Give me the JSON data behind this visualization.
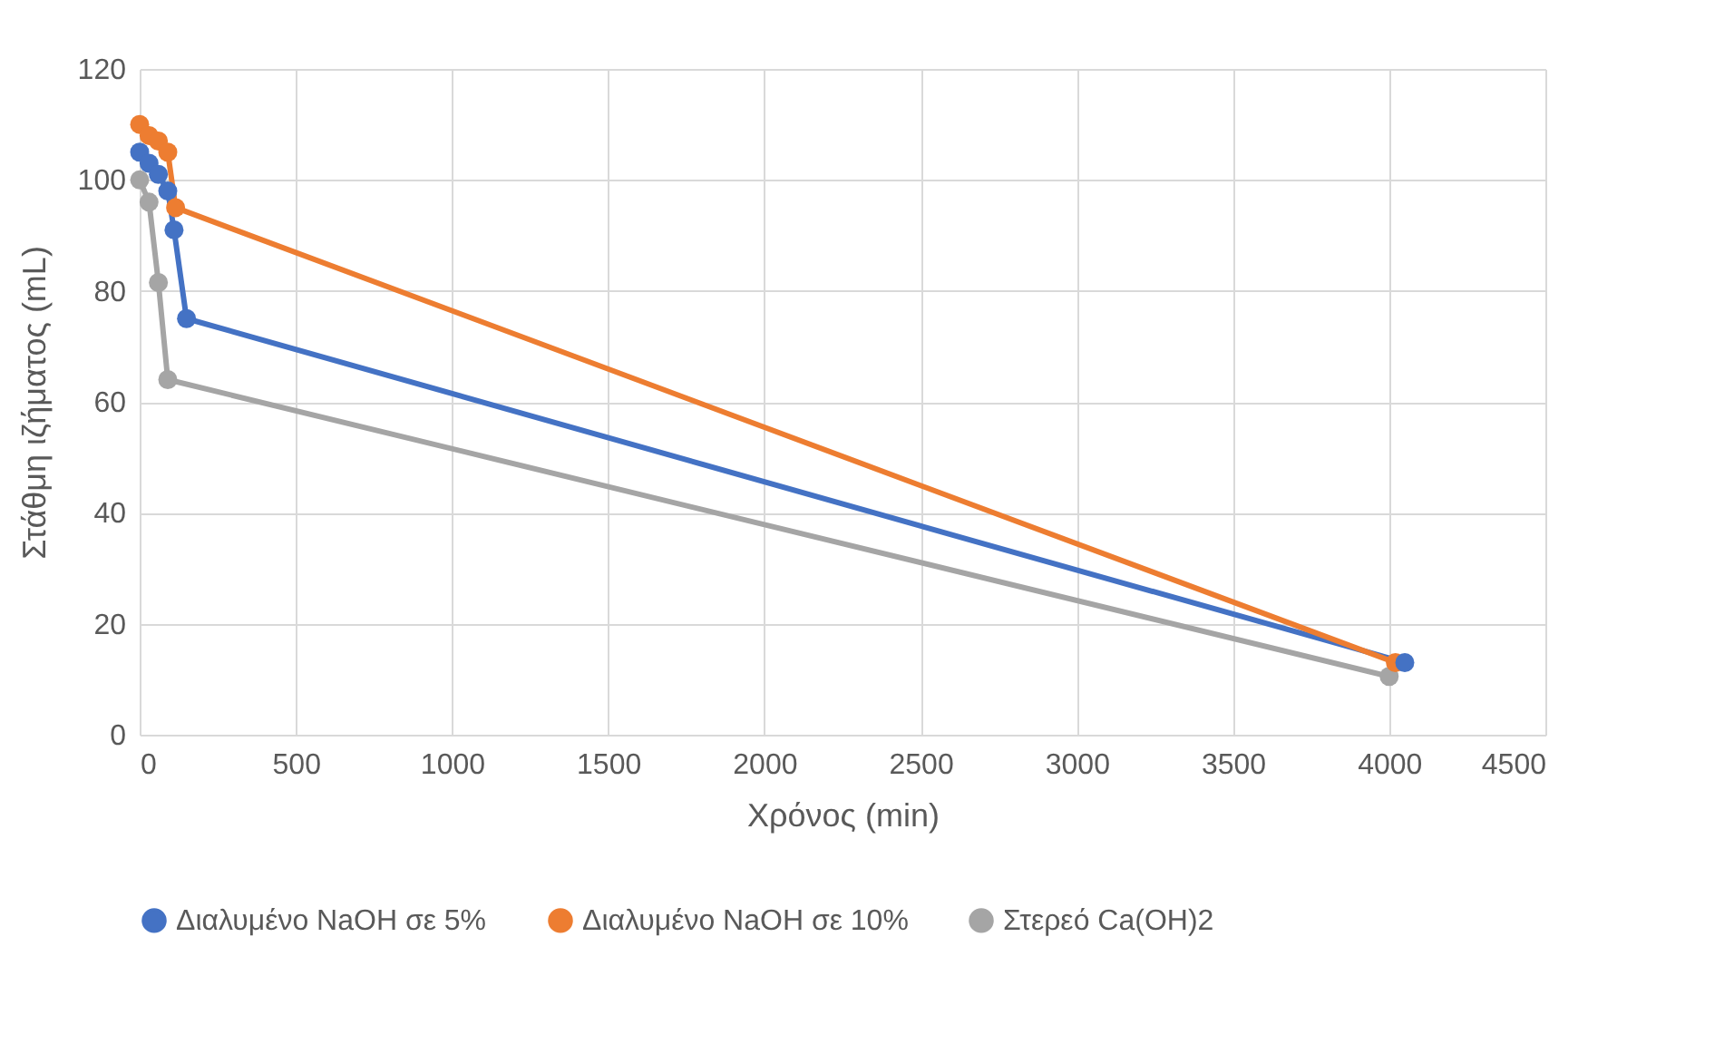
{
  "chart_data": {
    "type": "line",
    "xlabel": "Χρόνος (min)",
    "ylabel": "Στάθμη ιζήματος (mL)",
    "xlim": [
      0,
      4500
    ],
    "xticks": [
      0,
      500,
      1000,
      1500,
      2000,
      2500,
      3000,
      3500,
      4000,
      4500
    ],
    "ylim": [
      0,
      120
    ],
    "yticks": [
      0,
      20,
      40,
      60,
      80,
      100,
      120
    ],
    "grid": true,
    "legend": "bottom",
    "marker": "circle",
    "series": [
      {
        "name": "Διαλυμένο NaOH σε 5%",
        "color": "#4472c4",
        "x": [
          0,
          30,
          60,
          90,
          110,
          150,
          4050
        ],
        "values": [
          105,
          103,
          101,
          98,
          91,
          75,
          13
        ]
      },
      {
        "name": "Διαλυμένο NaOH σε 10%",
        "color": "#ed7d31",
        "x": [
          0,
          30,
          60,
          90,
          115,
          4020
        ],
        "values": [
          110,
          108,
          107,
          105,
          95,
          13
        ]
      },
      {
        "name": "Στερεό Ca(OH)2",
        "color": "#a5a5a5",
        "x": [
          0,
          30,
          60,
          90,
          4000
        ],
        "values": [
          100,
          96,
          81.5,
          64,
          10.5
        ]
      }
    ]
  }
}
